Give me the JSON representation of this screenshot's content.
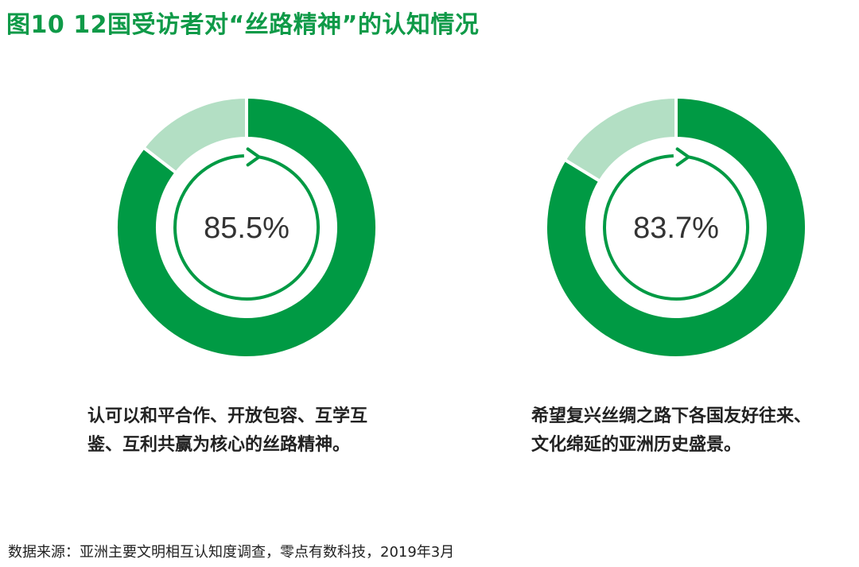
{
  "title": "图10  12国受访者对“丝路精神”的认知情况",
  "colors": {
    "primary": "#009a44",
    "secondary": "#b3dfc4",
    "title": "#0f9a48",
    "text": "#222222"
  },
  "chart_data": [
    {
      "type": "pie",
      "values": [
        85.5,
        14.5
      ],
      "value_label": "85.5%",
      "caption_lines": [
        "认可以和平合作、开放包容、互学互",
        "鉴、互利共赢为核心的丝路精神。"
      ]
    },
    {
      "type": "pie",
      "values": [
        83.7,
        16.3
      ],
      "value_label": "83.7%",
      "caption_lines": [
        "希望复兴丝绸之路下各国友好往来、",
        "文化绵延的亚洲历史盛景。"
      ]
    }
  ],
  "source": "数据来源：亚洲主要文明相互认知度调查，零点有数科技，2019年3月"
}
